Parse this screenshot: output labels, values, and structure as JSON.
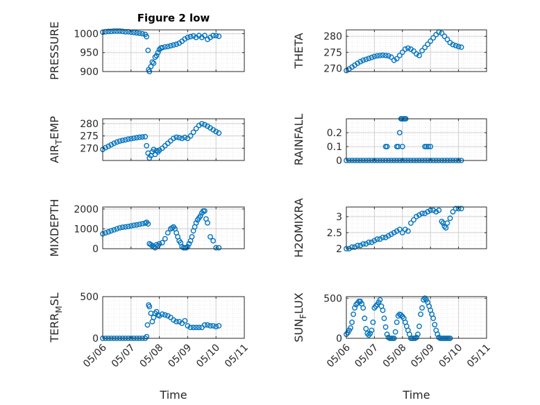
{
  "figure": {
    "title": "Figure 2 low",
    "xlabel": "Time"
  },
  "colors": {
    "marker": "#0072BD",
    "axis": "#262626",
    "grid": "#d0d0d0",
    "minorgrid": "#e4e4e4"
  },
  "chart_data": [
    {
      "type": "scatter",
      "ylabel": "PRESSURE",
      "title": "Figure 2 low",
      "xlim": [
        0,
        5
      ],
      "ylim": [
        900,
        1010
      ],
      "yticks": [
        900,
        950,
        1000
      ],
      "xtick_labels": [],
      "grid": true,
      "x": [
        0.0,
        0.1,
        0.2,
        0.3,
        0.4,
        0.5,
        0.6,
        0.7,
        0.8,
        0.9,
        1.0,
        1.1,
        1.2,
        1.3,
        1.4,
        1.5,
        1.55,
        1.6,
        1.62,
        1.65,
        1.7,
        1.75,
        1.8,
        1.85,
        1.9,
        1.95,
        2.0,
        2.05,
        2.1,
        2.2,
        2.3,
        2.4,
        2.5,
        2.6,
        2.7,
        2.8,
        2.9,
        3.0,
        3.1,
        3.2,
        3.3,
        3.4,
        3.5,
        3.6,
        3.7,
        3.8,
        3.9,
        4.0,
        4.1
      ],
      "y": [
        1004,
        1005,
        1006,
        1006,
        1007,
        1007,
        1007,
        1006,
        1005,
        1005,
        1004,
        1003,
        1002,
        1001,
        1000,
        998,
        992,
        956,
        905,
        900,
        913,
        925,
        922,
        938,
        942,
        950,
        958,
        962,
        963,
        965,
        966,
        968,
        970,
        972,
        975,
        980,
        986,
        990,
        992,
        994,
        990,
        995,
        990,
        995,
        985,
        990,
        995,
        995,
        993
      ]
    },
    {
      "type": "scatter",
      "ylabel": "THETA",
      "xlim": [
        0,
        5
      ],
      "ylim": [
        269,
        282
      ],
      "yticks": [
        270,
        275,
        280
      ],
      "xtick_labels": [],
      "grid": true,
      "x": [
        0.0,
        0.1,
        0.2,
        0.3,
        0.4,
        0.5,
        0.6,
        0.7,
        0.8,
        0.9,
        1.0,
        1.1,
        1.2,
        1.3,
        1.4,
        1.5,
        1.6,
        1.7,
        1.8,
        1.9,
        2.0,
        2.1,
        2.2,
        2.3,
        2.4,
        2.5,
        2.6,
        2.7,
        2.8,
        2.9,
        3.0,
        3.1,
        3.2,
        3.3,
        3.4,
        3.5,
        3.6,
        3.7,
        3.8,
        3.9,
        4.0,
        4.1
      ],
      "y": [
        269.3,
        269.8,
        270.4,
        271.0,
        271.6,
        272.1,
        272.5,
        272.8,
        273.1,
        273.4,
        273.7,
        273.9,
        274.0,
        274.1,
        274.0,
        273.9,
        273.5,
        272.5,
        273.0,
        274.0,
        275.0,
        276.0,
        276.3,
        276.0,
        275.4,
        274.5,
        274.0,
        275.5,
        276.5,
        277.5,
        278.5,
        279.5,
        280.5,
        281.3,
        281.0,
        280.0,
        279.0,
        278.0,
        277.4,
        277.1,
        276.8,
        276.6
      ]
    },
    {
      "type": "scatter",
      "ylabel": "AIR_TEMP",
      "xlim": [
        0,
        5
      ],
      "ylim": [
        265,
        282
      ],
      "yticks": [
        270,
        275,
        280
      ],
      "xtick_labels": [],
      "grid": true,
      "x": [
        0.0,
        0.1,
        0.2,
        0.3,
        0.4,
        0.5,
        0.6,
        0.7,
        0.8,
        0.9,
        1.0,
        1.1,
        1.2,
        1.3,
        1.4,
        1.5,
        1.55,
        1.6,
        1.65,
        1.7,
        1.75,
        1.8,
        1.85,
        1.9,
        1.95,
        2.0,
        2.1,
        2.2,
        2.3,
        2.4,
        2.5,
        2.6,
        2.7,
        2.8,
        2.9,
        3.0,
        3.1,
        3.2,
        3.3,
        3.4,
        3.5,
        3.6,
        3.7,
        3.8,
        3.9,
        4.0,
        4.1
      ],
      "y": [
        269.5,
        270.2,
        270.8,
        271.4,
        272.0,
        272.5,
        272.9,
        273.2,
        273.4,
        273.7,
        273.9,
        274.1,
        274.3,
        274.5,
        274.6,
        274.7,
        271.0,
        268.0,
        266.0,
        267.0,
        268.5,
        269.5,
        267.5,
        269.0,
        268.5,
        269.2,
        270.0,
        271.0,
        272.0,
        273.0,
        274.0,
        274.5,
        274.3,
        274.0,
        274.4,
        274.0,
        275.0,
        276.5,
        278.0,
        279.3,
        280.0,
        279.6,
        279.0,
        278.3,
        277.5,
        276.8,
        276.2
      ]
    },
    {
      "type": "scatter",
      "ylabel": "RAINFALL",
      "xlim": [
        0,
        5
      ],
      "ylim": [
        0,
        0.3
      ],
      "yticks": [
        0,
        0.1,
        0.2
      ],
      "xtick_labels": [],
      "grid": true,
      "x": [
        0.0,
        0.1,
        0.2,
        0.3,
        0.4,
        0.5,
        0.6,
        0.7,
        0.8,
        0.9,
        1.0,
        1.1,
        1.2,
        1.3,
        1.4,
        1.5,
        1.6,
        1.7,
        1.8,
        1.9,
        2.0,
        2.1,
        2.2,
        2.3,
        2.4,
        2.5,
        2.6,
        2.7,
        2.8,
        2.9,
        3.0,
        3.1,
        3.2,
        3.3,
        3.4,
        3.5,
        3.6,
        3.7,
        3.8,
        3.9,
        4.0,
        4.1,
        1.4,
        1.45,
        1.8,
        1.85,
        1.9,
        1.95,
        1.98,
        2.0,
        2.03,
        2.08,
        2.12,
        2.8,
        2.85,
        2.92,
        3.0
      ],
      "y": [
        0,
        0,
        0,
        0,
        0,
        0,
        0,
        0,
        0,
        0,
        0,
        0,
        0,
        0,
        0,
        0,
        0,
        0,
        0,
        0,
        0,
        0,
        0,
        0,
        0,
        0,
        0,
        0,
        0,
        0,
        0,
        0,
        0,
        0,
        0,
        0,
        0,
        0,
        0,
        0,
        0,
        0,
        0.1,
        0.1,
        0.1,
        0.1,
        0.2,
        0.3,
        0.3,
        0.1,
        0.3,
        0.3,
        0.3,
        0.1,
        0.1,
        0.1,
        0.1
      ]
    },
    {
      "type": "scatter",
      "ylabel": "MIXDEPTH",
      "xlim": [
        0,
        5
      ],
      "ylim": [
        0,
        2100
      ],
      "yticks": [
        0,
        1000,
        2000
      ],
      "xtick_labels": [],
      "grid": true,
      "x": [
        0.0,
        0.1,
        0.2,
        0.3,
        0.4,
        0.5,
        0.6,
        0.7,
        0.8,
        0.9,
        1.0,
        1.1,
        1.2,
        1.3,
        1.4,
        1.5,
        1.55,
        1.6,
        1.65,
        1.7,
        1.75,
        1.8,
        1.85,
        1.9,
        1.95,
        2.0,
        2.1,
        2.2,
        2.3,
        2.4,
        2.45,
        2.5,
        2.55,
        2.6,
        2.65,
        2.7,
        2.75,
        2.8,
        2.85,
        2.9,
        2.95,
        3.0,
        3.05,
        3.1,
        3.15,
        3.2,
        3.25,
        3.3,
        3.35,
        3.4,
        3.45,
        3.5,
        3.55,
        3.6,
        3.65,
        3.7,
        3.8,
        3.9,
        4.0,
        4.1
      ],
      "y": [
        750,
        800,
        850,
        900,
        950,
        1000,
        1050,
        1080,
        1100,
        1120,
        1150,
        1180,
        1200,
        1230,
        1260,
        1290,
        1330,
        1250,
        250,
        200,
        150,
        100,
        50,
        200,
        150,
        250,
        300,
        500,
        800,
        1000,
        1050,
        1100,
        1000,
        800,
        600,
        400,
        300,
        100,
        50,
        50,
        50,
        100,
        250,
        400,
        600,
        900,
        1100,
        1300,
        1450,
        1550,
        1650,
        1800,
        1900,
        1900,
        1500,
        1300,
        600,
        400,
        50,
        50
      ]
    },
    {
      "type": "scatter",
      "ylabel": "H2OMIXRA",
      "xlim": [
        0,
        5
      ],
      "ylim": [
        2,
        3.3
      ],
      "yticks": [
        2,
        2.5,
        3
      ],
      "xtick_labels": [],
      "grid": true,
      "x": [
        0.0,
        0.1,
        0.2,
        0.3,
        0.4,
        0.5,
        0.6,
        0.7,
        0.8,
        0.9,
        1.0,
        1.1,
        1.2,
        1.3,
        1.4,
        1.5,
        1.6,
        1.7,
        1.8,
        1.9,
        2.0,
        2.1,
        2.2,
        2.3,
        2.4,
        2.5,
        2.6,
        2.7,
        2.8,
        2.9,
        3.0,
        3.1,
        3.2,
        3.3,
        3.4,
        3.45,
        3.5,
        3.55,
        3.6,
        3.7,
        3.8,
        3.9,
        4.0,
        4.1
      ],
      "y": [
        2.0,
        2.0,
        2.05,
        2.05,
        2.1,
        2.1,
        2.15,
        2.15,
        2.2,
        2.2,
        2.25,
        2.3,
        2.3,
        2.35,
        2.35,
        2.4,
        2.45,
        2.5,
        2.55,
        2.6,
        2.5,
        2.6,
        2.55,
        2.8,
        2.9,
        3.0,
        3.05,
        3.1,
        3.1,
        3.15,
        3.2,
        3.2,
        3.15,
        3.2,
        2.85,
        2.8,
        2.7,
        2.65,
        2.8,
        2.95,
        3.15,
        3.25,
        3.25,
        3.25
      ]
    },
    {
      "type": "scatter",
      "ylabel": "TERR_MSL",
      "xlim": [
        0,
        5
      ],
      "ylim": [
        0,
        500
      ],
      "yticks": [
        0,
        500
      ],
      "xtick_labels": [
        "05/06",
        "05/07",
        "05/08",
        "05/09",
        "05/10",
        "05/11"
      ],
      "grid": true,
      "x": [
        0.0,
        0.1,
        0.2,
        0.3,
        0.4,
        0.5,
        0.6,
        0.7,
        0.8,
        0.9,
        1.0,
        1.1,
        1.2,
        1.3,
        1.4,
        1.5,
        1.55,
        1.58,
        1.62,
        1.65,
        1.7,
        1.75,
        1.8,
        1.85,
        1.9,
        1.95,
        2.0,
        2.1,
        2.2,
        2.3,
        2.4,
        2.5,
        2.6,
        2.7,
        2.8,
        2.9,
        3.0,
        3.1,
        3.2,
        3.3,
        3.4,
        3.5,
        3.6,
        3.7,
        3.8,
        3.9,
        4.0,
        4.1
      ],
      "y": [
        0,
        0,
        0,
        0,
        0,
        0,
        0,
        0,
        0,
        0,
        0,
        0,
        0,
        0,
        0,
        0,
        20,
        160,
        400,
        380,
        300,
        200,
        250,
        300,
        320,
        280,
        270,
        290,
        280,
        270,
        250,
        220,
        200,
        200,
        180,
        210,
        150,
        130,
        130,
        130,
        130,
        130,
        160,
        160,
        150,
        150,
        140,
        150
      ]
    },
    {
      "type": "scatter",
      "ylabel": "SUN_FLUX",
      "xlim": [
        0,
        5
      ],
      "ylim": [
        0,
        520
      ],
      "yticks": [
        0,
        500
      ],
      "xtick_labels": [
        "05/06",
        "05/07",
        "05/08",
        "05/09",
        "05/10",
        "05/11"
      ],
      "grid": true,
      "x": [
        0.0,
        0.05,
        0.1,
        0.15,
        0.2,
        0.25,
        0.3,
        0.35,
        0.4,
        0.45,
        0.5,
        0.55,
        0.6,
        0.65,
        0.7,
        0.75,
        0.8,
        0.85,
        0.9,
        0.95,
        1.0,
        1.05,
        1.1,
        1.15,
        1.2,
        1.25,
        1.3,
        1.35,
        1.4,
        1.45,
        1.5,
        1.55,
        1.6,
        1.65,
        1.7,
        1.75,
        1.8,
        1.85,
        1.9,
        1.95,
        2.0,
        2.05,
        2.1,
        2.15,
        2.2,
        2.25,
        2.3,
        2.35,
        2.4,
        2.45,
        2.5,
        2.55,
        2.6,
        2.65,
        2.7,
        2.75,
        2.8,
        2.85,
        2.9,
        2.95,
        3.0,
        3.05,
        3.1,
        3.15,
        3.2,
        3.25,
        3.3,
        3.35,
        3.4,
        3.45,
        3.5,
        3.55,
        3.6,
        3.65,
        3.7
      ],
      "y": [
        50,
        70,
        100,
        130,
        200,
        300,
        380,
        420,
        440,
        460,
        460,
        430,
        380,
        250,
        120,
        60,
        40,
        60,
        100,
        200,
        380,
        400,
        420,
        450,
        480,
        400,
        350,
        250,
        140,
        50,
        10,
        0,
        0,
        0,
        0,
        80,
        200,
        280,
        300,
        290,
        270,
        250,
        200,
        150,
        100,
        50,
        0,
        0,
        0,
        0,
        10,
        50,
        150,
        300,
        380,
        480,
        500,
        480,
        450,
        400,
        350,
        300,
        250,
        170,
        100,
        50,
        10,
        0,
        0,
        0,
        0,
        0,
        0,
        0,
        0
      ]
    }
  ]
}
